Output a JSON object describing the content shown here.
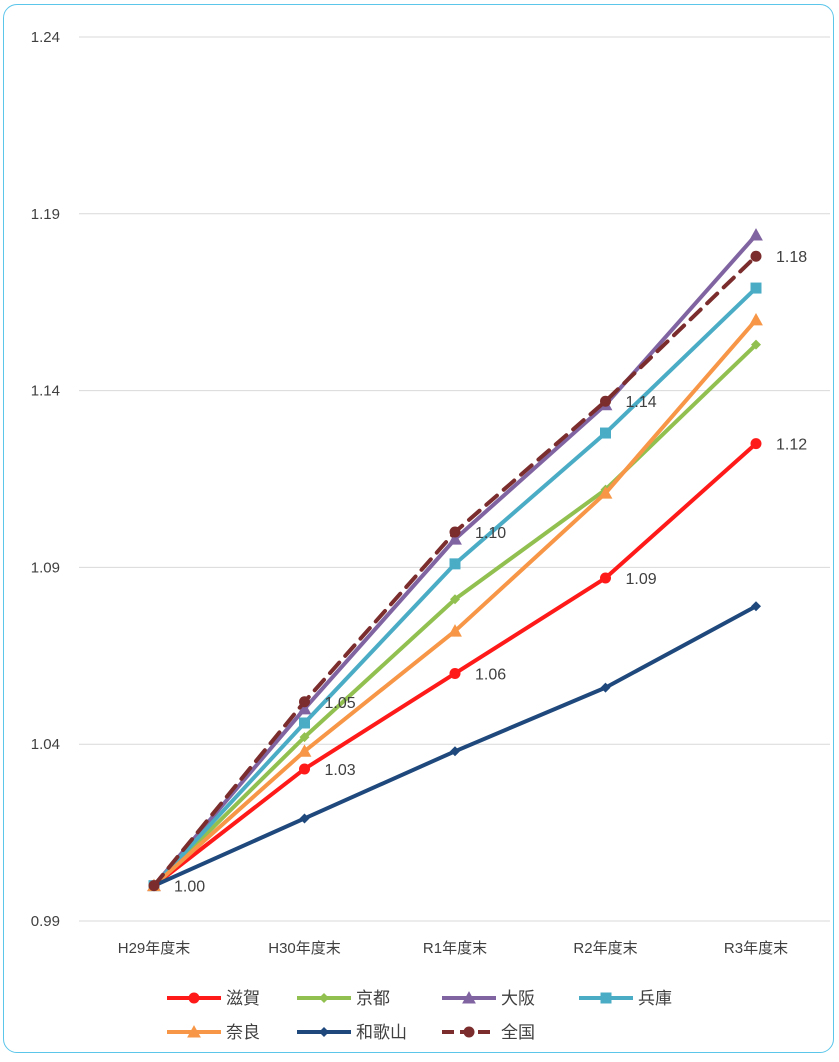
{
  "chart_data": {
    "type": "line",
    "title": "",
    "xlabel": "",
    "ylabel": "",
    "categories": [
      "H29年度末",
      "H30年度末",
      "R1年度末",
      "R2年度末",
      "R3年度末"
    ],
    "yticks": [
      "0.99",
      "1.04",
      "1.09",
      "1.14",
      "1.19",
      "1.24"
    ],
    "ylim": [
      0.99,
      1.24
    ],
    "grid": true,
    "legend_position": "bottom",
    "series": [
      {
        "name": "滋賀",
        "values": [
          1.0,
          1.033,
          1.06,
          1.087,
          1.125
        ],
        "color": "#ff1a1a",
        "marker": "circle",
        "dash": false
      },
      {
        "name": "京都",
        "values": [
          1.0,
          1.042,
          1.081,
          1.112,
          1.153
        ],
        "color": "#92c050",
        "marker": "diamond",
        "dash": false
      },
      {
        "name": "大阪",
        "values": [
          1.0,
          1.05,
          1.098,
          1.136,
          1.184
        ],
        "color": "#8064a2",
        "marker": "triangle",
        "dash": false
      },
      {
        "name": "兵庫",
        "values": [
          1.0,
          1.046,
          1.091,
          1.128,
          1.169
        ],
        "color": "#4bacc6",
        "marker": "square",
        "dash": false
      },
      {
        "name": "奈良",
        "values": [
          1.0,
          1.038,
          1.072,
          1.111,
          1.16
        ],
        "color": "#f79646",
        "marker": "triangle",
        "dash": false
      },
      {
        "name": "和歌山",
        "values": [
          1.0,
          1.019,
          1.038,
          1.056,
          1.079
        ],
        "color": "#1f497d",
        "marker": "diamond",
        "dash": false
      },
      {
        "name": "全国",
        "values": [
          1.0,
          1.052,
          1.1,
          1.137,
          1.178
        ],
        "color": "#7b2c2c",
        "marker": "circle",
        "dash": true
      }
    ],
    "data_labels": [
      {
        "series": "滋賀",
        "index": 0,
        "text": "1.00"
      },
      {
        "series": "滋賀",
        "index": 1,
        "text": "1.03"
      },
      {
        "series": "滋賀",
        "index": 2,
        "text": "1.06"
      },
      {
        "series": "滋賀",
        "index": 3,
        "text": "1.09"
      },
      {
        "series": "滋賀",
        "index": 4,
        "text": "1.12"
      },
      {
        "series": "全国",
        "index": 1,
        "text": "1.05"
      },
      {
        "series": "全国",
        "index": 2,
        "text": "1.10"
      },
      {
        "series": "全国",
        "index": 3,
        "text": "1.14"
      },
      {
        "series": "全国",
        "index": 4,
        "text": "1.18"
      }
    ]
  }
}
